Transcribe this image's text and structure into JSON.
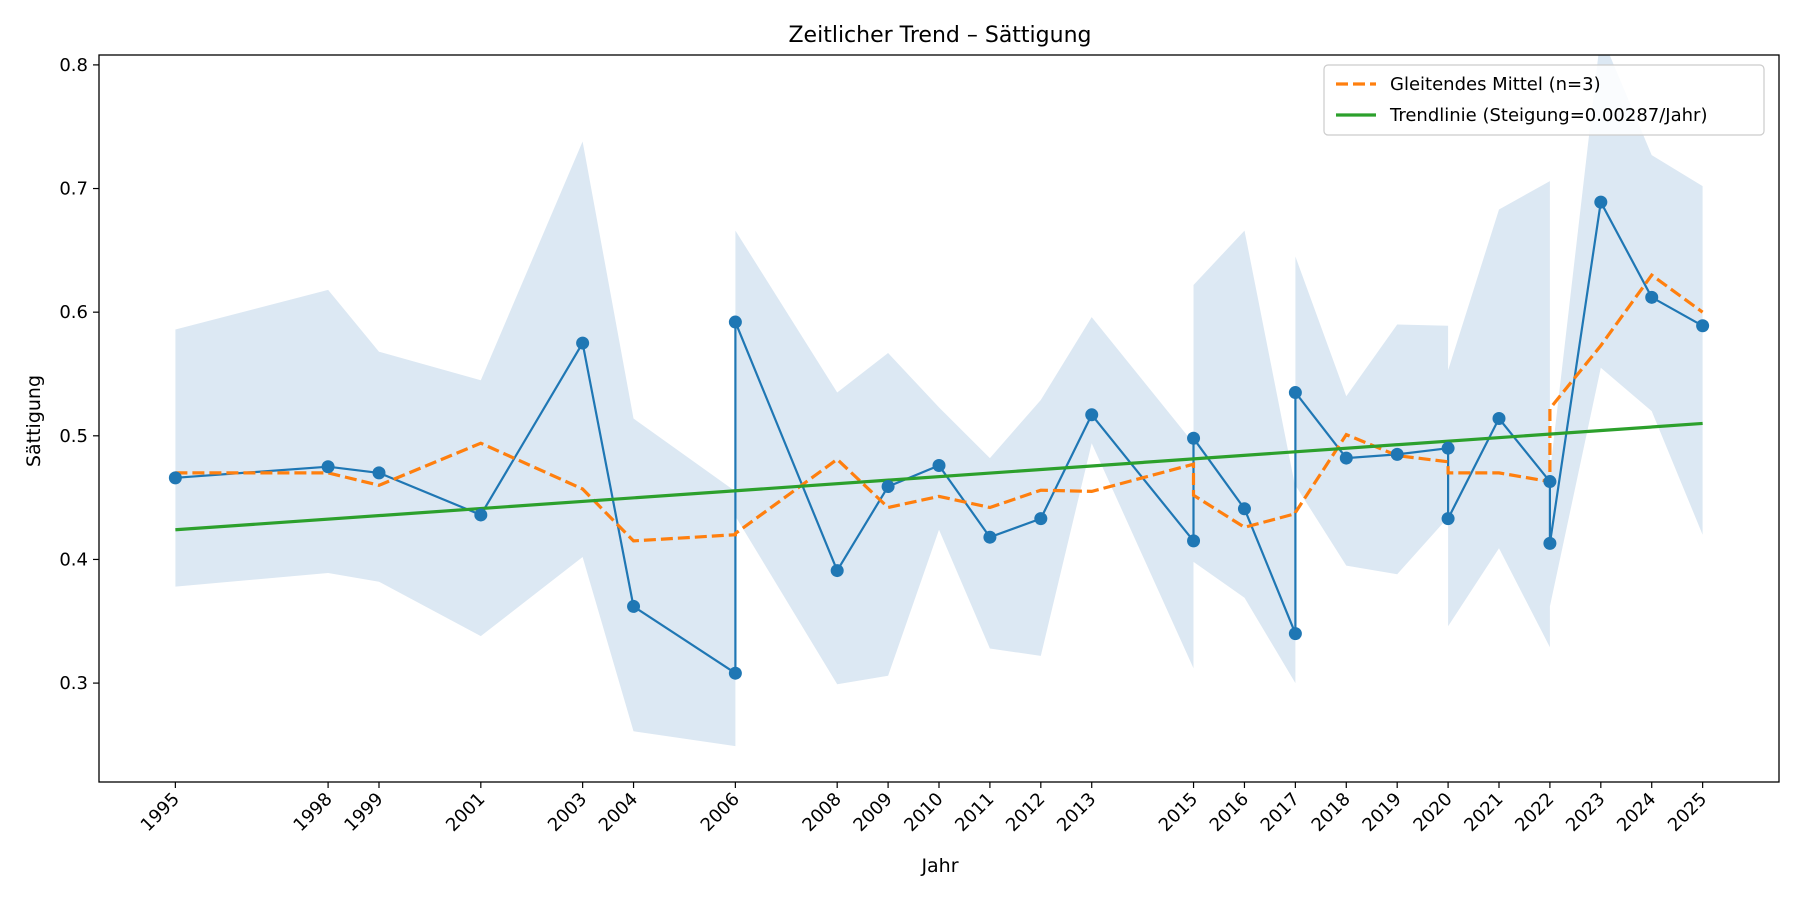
{
  "chart_data": {
    "type": "line",
    "title": "Zeitlicher Trend – Sättigung",
    "xlabel": "Jahr",
    "ylabel": "Sättigung",
    "ylim": [
      0.22,
      0.808
    ],
    "xlim": [
      1993.5,
      2026.5
    ],
    "grid": false,
    "legend_position": "top-right",
    "x_ticks": [
      1995,
      1998,
      1999,
      2001,
      2003,
      2004,
      2006,
      2008,
      2009,
      2010,
      2011,
      2012,
      2013,
      2015,
      2016,
      2017,
      2018,
      2019,
      2020,
      2021,
      2022,
      2023,
      2024,
      2025
    ],
    "y_ticks": [
      0.3,
      0.4,
      0.5,
      0.6,
      0.7,
      0.8
    ],
    "colors": {
      "data": "#1f77b4",
      "band": "#dce8f3",
      "moving_average": "#ff7f0e",
      "trend": "#2ca02c"
    },
    "points": [
      {
        "x": 1995,
        "y": 0.466,
        "lo": 0.378,
        "hi": 0.586
      },
      {
        "x": 1998,
        "y": 0.475,
        "lo": 0.389,
        "hi": 0.618
      },
      {
        "x": 1999,
        "y": 0.47,
        "lo": 0.382,
        "hi": 0.568
      },
      {
        "x": 2001,
        "y": 0.436,
        "lo": 0.338,
        "hi": 0.545
      },
      {
        "x": 2003,
        "y": 0.575,
        "lo": 0.402,
        "hi": 0.738
      },
      {
        "x": 2004,
        "y": 0.362,
        "lo": 0.261,
        "hi": 0.514
      },
      {
        "x": 2006,
        "y": 0.308,
        "lo": 0.249,
        "hi": 0.455
      },
      {
        "x": 2006,
        "y": 0.592,
        "lo": 0.435,
        "hi": 0.666
      },
      {
        "x": 2008,
        "y": 0.391,
        "lo": 0.299,
        "hi": 0.535
      },
      {
        "x": 2009,
        "y": 0.459,
        "lo": 0.306,
        "hi": 0.567
      },
      {
        "x": 2010,
        "y": 0.476,
        "lo": 0.424,
        "hi": 0.523
      },
      {
        "x": 2011,
        "y": 0.418,
        "lo": 0.328,
        "hi": 0.482
      },
      {
        "x": 2012,
        "y": 0.433,
        "lo": 0.322,
        "hi": 0.529
      },
      {
        "x": 2013,
        "y": 0.517,
        "lo": 0.494,
        "hi": 0.596
      },
      {
        "x": 2015,
        "y": 0.415,
        "lo": 0.312,
        "hi": 0.494
      },
      {
        "x": 2015,
        "y": 0.498,
        "lo": 0.398,
        "hi": 0.622
      },
      {
        "x": 2016,
        "y": 0.441,
        "lo": 0.369,
        "hi": 0.666
      },
      {
        "x": 2017,
        "y": 0.34,
        "lo": 0.3,
        "hi": 0.458
      },
      {
        "x": 2017,
        "y": 0.535,
        "lo": 0.46,
        "hi": 0.645
      },
      {
        "x": 2018,
        "y": 0.482,
        "lo": 0.395,
        "hi": 0.532
      },
      {
        "x": 2019,
        "y": 0.485,
        "lo": 0.388,
        "hi": 0.59
      },
      {
        "x": 2020,
        "y": 0.49,
        "lo": 0.434,
        "hi": 0.589
      },
      {
        "x": 2020,
        "y": 0.433,
        "lo": 0.346,
        "hi": 0.553
      },
      {
        "x": 2021,
        "y": 0.514,
        "lo": 0.409,
        "hi": 0.683
      },
      {
        "x": 2022,
        "y": 0.463,
        "lo": 0.329,
        "hi": 0.706
      },
      {
        "x": 2022,
        "y": 0.413,
        "lo": 0.362,
        "hi": 0.47
      },
      {
        "x": 2023,
        "y": 0.689,
        "lo": 0.555,
        "hi": 0.825
      },
      {
        "x": 2024,
        "y": 0.612,
        "lo": 0.52,
        "hi": 0.727
      },
      {
        "x": 2025,
        "y": 0.589,
        "lo": 0.42,
        "hi": 0.702
      }
    ],
    "series": [
      {
        "name": "Gleitendes Mittel (n=3)",
        "style": "dashed",
        "x": [
          1995,
          1998,
          1999,
          2001,
          2003,
          2004,
          2006,
          2006,
          2008,
          2009,
          2010,
          2011,
          2012,
          2013,
          2015,
          2015,
          2016,
          2017,
          2017,
          2018,
          2019,
          2020,
          2020,
          2021,
          2022,
          2022,
          2023,
          2024,
          2025
        ],
        "y": [
          0.47,
          0.47,
          0.46,
          0.494,
          0.457,
          0.415,
          0.42,
          0.421,
          0.481,
          0.442,
          0.451,
          0.442,
          0.456,
          0.455,
          0.477,
          0.452,
          0.426,
          0.437,
          0.438,
          0.501,
          0.484,
          0.479,
          0.47,
          0.47,
          0.463,
          0.522,
          0.573,
          0.63,
          0.6
        ]
      },
      {
        "name": "Trendlinie (Steigung=0.00287/Jahr)",
        "style": "solid",
        "x": [
          1995,
          2025
        ],
        "y": [
          0.424,
          0.51
        ]
      }
    ]
  }
}
